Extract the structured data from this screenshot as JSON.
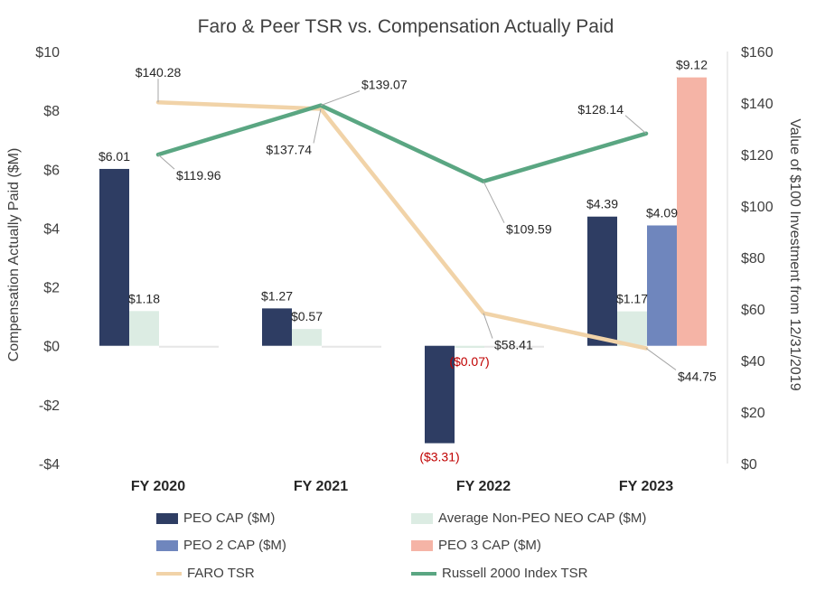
{
  "chart_data": {
    "type": "bar+line",
    "title": "Faro & Peer TSR vs. Compensation Actually Paid",
    "ylabel": "Compensation Actually Paid ($M)",
    "y2label": "Value of $100 Investment from 12/31/2019",
    "categories": [
      "FY 2020",
      "FY 2021",
      "FY 2022",
      "FY 2023"
    ],
    "ylim": [
      -4,
      10
    ],
    "y_ticks": [
      10,
      8,
      6,
      4,
      2,
      0,
      -2,
      -4
    ],
    "y_tick_labels": [
      "$10",
      "$8",
      "$6",
      "$4",
      "$2",
      "$0",
      "-$2",
      "-$4"
    ],
    "y2lim": [
      0,
      160
    ],
    "y2_ticks": [
      160,
      140,
      120,
      100,
      80,
      60,
      40,
      20,
      0
    ],
    "y2_tick_labels": [
      "$160",
      "$140",
      "$120",
      "$100",
      "$80",
      "$60",
      "$40",
      "$20",
      "$0"
    ],
    "bar_series": [
      {
        "name": "PEO CAP ($M)",
        "color": "#2e3d63",
        "values": [
          6.01,
          1.27,
          -3.31,
          4.39
        ],
        "labels": [
          "$6.01",
          "$1.27",
          "($3.31)",
          "$4.39"
        ]
      },
      {
        "name": "Average Non-PEO NEO CAP ($M)",
        "color": "#dcece3",
        "values": [
          1.18,
          0.57,
          -0.07,
          1.17
        ],
        "labels": [
          "$1.18",
          "$0.57",
          "($0.07)",
          "$1.17"
        ]
      },
      {
        "name": "PEO 2 CAP ($M)",
        "color": "#6f86bd",
        "values": [
          null,
          null,
          null,
          4.09
        ],
        "labels": [
          "",
          "",
          "",
          "$4.09"
        ]
      },
      {
        "name": "PEO 3 CAP ($M)",
        "color": "#f5b4a6",
        "values": [
          null,
          null,
          null,
          9.12
        ],
        "labels": [
          "",
          "",
          "",
          "$9.12"
        ]
      }
    ],
    "line_series": [
      {
        "name": "FARO TSR",
        "color": "#f1d3a8",
        "values": [
          140.28,
          137.74,
          58.41,
          44.75
        ],
        "labels": [
          "$140.28",
          "$137.74",
          "$58.41",
          "$44.75"
        ]
      },
      {
        "name": "Russell 2000 Index TSR",
        "color": "#5aa682",
        "values": [
          119.96,
          139.07,
          109.59,
          128.14
        ],
        "labels": [
          "$119.96",
          "$139.07",
          "$109.59",
          "$128.14"
        ]
      }
    ],
    "negative_label_color": "#c00000"
  }
}
